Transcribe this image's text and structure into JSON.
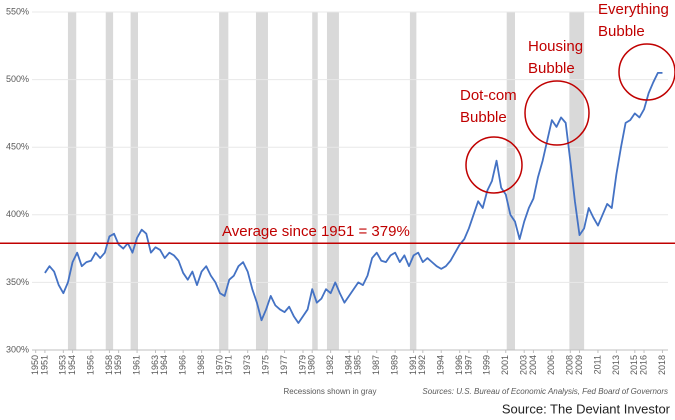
{
  "chart_data": {
    "type": "line",
    "x": [
      1951,
      1951.5,
      1952,
      1952.5,
      1953,
      1953.5,
      1954,
      1954.5,
      1955,
      1955.5,
      1956,
      1956.5,
      1957,
      1957.5,
      1958,
      1958.5,
      1959,
      1959.5,
      1960,
      1960.5,
      1961,
      1961.5,
      1962,
      1962.5,
      1963,
      1963.5,
      1964,
      1964.5,
      1965,
      1965.5,
      1966,
      1966.5,
      1967,
      1967.5,
      1968,
      1968.5,
      1969,
      1969.5,
      1970,
      1970.5,
      1971,
      1971.5,
      1972,
      1972.5,
      1973,
      1973.5,
      1974,
      1974.5,
      1975,
      1975.5,
      1976,
      1976.5,
      1977,
      1977.5,
      1978,
      1978.5,
      1979,
      1979.5,
      1980,
      1980.5,
      1981,
      1981.5,
      1982,
      1982.5,
      1983,
      1983.5,
      1984,
      1984.5,
      1985,
      1985.5,
      1986,
      1986.5,
      1987,
      1987.5,
      1988,
      1988.5,
      1989,
      1989.5,
      1990,
      1990.5,
      1991,
      1991.5,
      1992,
      1992.5,
      1993,
      1993.5,
      1994,
      1994.5,
      1995,
      1995.5,
      1996,
      1996.5,
      1997,
      1997.5,
      1998,
      1998.5,
      1999,
      1999.5,
      2000,
      2000.5,
      2001,
      2001.5,
      2002,
      2002.5,
      2003,
      2003.5,
      2004,
      2004.5,
      2005,
      2005.5,
      2006,
      2006.5,
      2007,
      2007.5,
      2008,
      2008.5,
      2009,
      2009.5,
      2010,
      2010.5,
      2011,
      2011.5,
      2012,
      2012.5,
      2013,
      2013.5,
      2014,
      2014.5,
      2015,
      2015.5,
      2016,
      2016.5,
      2017,
      2017.5,
      2018
    ],
    "series": [
      {
        "color": "#4472c4",
        "values": [
          357,
          362,
          358,
          348,
          342,
          350,
          365,
          372,
          362,
          365,
          366,
          372,
          368,
          372,
          384,
          386,
          378,
          375,
          379,
          372,
          383,
          389,
          386,
          372,
          376,
          374,
          368,
          372,
          370,
          366,
          357,
          352,
          358,
          348,
          358,
          362,
          355,
          350,
          342,
          340,
          352,
          355,
          362,
          365,
          358,
          345,
          335,
          322,
          330,
          340,
          333,
          330,
          328,
          332,
          325,
          320,
          325,
          330,
          345,
          335,
          338,
          345,
          342,
          350,
          342,
          335,
          340,
          345,
          350,
          348,
          355,
          368,
          372,
          366,
          365,
          370,
          372,
          365,
          370,
          362,
          370,
          372,
          365,
          368,
          365,
          362,
          360,
          362,
          366,
          372,
          378,
          382,
          390,
          400,
          410,
          405,
          418,
          425,
          440,
          420,
          415,
          400,
          395,
          382,
          395,
          405,
          412,
          428,
          440,
          455,
          470,
          465,
          472,
          468,
          440,
          410,
          385,
          390,
          405,
          398,
          392,
          400,
          408,
          405,
          430,
          450,
          468,
          470,
          475,
          472,
          478,
          490,
          498,
          505,
          505
        ]
      }
    ],
    "xlim": [
      1949.6,
      2018.6
    ],
    "ylim": [
      300,
      550
    ],
    "yticks": [
      {
        "value": 300,
        "label": "300%"
      },
      {
        "value": 350,
        "label": "350%"
      },
      {
        "value": 400,
        "label": "400%"
      },
      {
        "value": 450,
        "label": "450%"
      },
      {
        "value": 500,
        "label": "500%"
      },
      {
        "value": 550,
        "label": "550%"
      }
    ],
    "xticks": [
      1950,
      1951,
      1953,
      1954,
      1956,
      1958,
      1959,
      1961,
      1963,
      1964,
      1966,
      1968,
      1970,
      1971,
      1973,
      1975,
      1977,
      1979,
      1980,
      1982,
      1984,
      1985,
      1987,
      1989,
      1991,
      1992,
      1994,
      1996,
      1997,
      1999,
      2001,
      2003,
      2004,
      2006,
      2008,
      2009,
      2011,
      2013,
      2015,
      2016,
      2018
    ],
    "grid": true,
    "recessions": [
      [
        1953.5,
        1954.4
      ],
      [
        1957.6,
        1958.4
      ],
      [
        1960.3,
        1961.1
      ],
      [
        1969.9,
        1970.9
      ],
      [
        1973.9,
        1975.2
      ],
      [
        1980.0,
        1980.6
      ],
      [
        1981.6,
        1982.9
      ],
      [
        1990.6,
        1991.3
      ],
      [
        2001.1,
        2002.0
      ],
      [
        2007.9,
        2009.5
      ]
    ],
    "average": {
      "value": 379,
      "label": "Average since 1951 = 379%",
      "color": "#c00000"
    },
    "annotations": [
      {
        "lines": [
          "Dot-com",
          "Bubble"
        ]
      },
      {
        "lines": [
          "Housing",
          "Bubble"
        ]
      },
      {
        "lines": [
          "Everything",
          "Bubble"
        ]
      }
    ],
    "note": "Recessions shown in gray",
    "sources": "Sources: U.S. Bureau of Economic Analysis, Fed Board of Governors",
    "credit": "Source: The Deviant Investor"
  }
}
